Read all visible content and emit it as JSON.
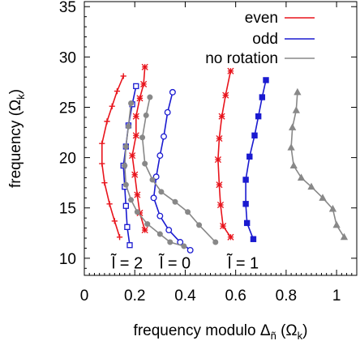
{
  "chart_data": {
    "type": "line",
    "title": "",
    "xlabel": {
      "main": "frequency modulo Δ",
      "sub": "ñ",
      "unit": " (Ω",
      "unit_sub": "k",
      "close": ")"
    },
    "ylabel": {
      "main": "frequency (Ω",
      "sub": "k",
      "close": ")"
    },
    "xlim": [
      0,
      1.08
    ],
    "ylim": [
      8.3,
      35.5
    ],
    "xticks": [
      0,
      0.2,
      0.4,
      0.6,
      0.8,
      1
    ],
    "xtick_labels": [
      "0",
      "0.2",
      "0.4",
      "0.6",
      "0.8",
      "1"
    ],
    "yticks": [
      10,
      15,
      20,
      25,
      30,
      35
    ],
    "ytick_labels": [
      "10",
      "15",
      "20",
      "25",
      "30",
      "35"
    ],
    "legend": {
      "position": "top-right",
      "entries": [
        {
          "name": "even",
          "color": "#e8141c"
        },
        {
          "name": "odd",
          "color": "#1a1ad0"
        },
        {
          "name": "no rotation",
          "color": "#888888"
        }
      ]
    },
    "annotations": [
      {
        "text": "l̃ = 2",
        "x": 0.17,
        "y": 9.0
      },
      {
        "text": "l̃ = 0",
        "x": 0.36,
        "y": 9.0
      },
      {
        "text": "l̃ = 1",
        "x": 0.63,
        "y": 9.0
      }
    ],
    "series": [
      {
        "group": "even",
        "color": "#e8141c",
        "marker": "plus",
        "points": [
          [
            0.155,
            28.1
          ],
          [
            0.13,
            26.6
          ],
          [
            0.11,
            25.1
          ],
          [
            0.09,
            23.6
          ],
          [
            0.07,
            21.4
          ],
          [
            0.07,
            19.4
          ],
          [
            0.08,
            17.5
          ],
          [
            0.1,
            15.4
          ],
          [
            0.12,
            13.7
          ],
          [
            0.14,
            12.1
          ]
        ]
      },
      {
        "group": "even",
        "color": "#e8141c",
        "marker": "star",
        "points": [
          [
            0.24,
            29.0
          ],
          [
            0.235,
            27.3
          ],
          [
            0.22,
            25.9
          ],
          [
            0.205,
            24.1
          ],
          [
            0.205,
            22.2
          ],
          [
            0.19,
            20.2
          ],
          [
            0.2,
            18.3
          ],
          [
            0.21,
            16.3
          ],
          [
            0.22,
            14.5
          ],
          [
            0.24,
            12.8
          ]
        ]
      },
      {
        "group": "even",
        "color": "#e8141c",
        "marker": "star",
        "points": [
          [
            0.58,
            28.6
          ],
          [
            0.56,
            26.2
          ],
          [
            0.545,
            24.1
          ],
          [
            0.535,
            21.9
          ],
          [
            0.53,
            19.8
          ],
          [
            0.535,
            17.3
          ],
          [
            0.54,
            15.3
          ],
          [
            0.55,
            13.2
          ],
          [
            0.58,
            12.1
          ]
        ]
      },
      {
        "group": "odd",
        "color": "#1a1ad0",
        "marker": "square",
        "points": [
          [
            0.205,
            27.1
          ],
          [
            0.19,
            25.3
          ],
          [
            0.175,
            23.2
          ],
          [
            0.165,
            21.1
          ],
          [
            0.155,
            19.2
          ],
          [
            0.16,
            17.1
          ],
          [
            0.165,
            15.2
          ],
          [
            0.17,
            13.1
          ],
          [
            0.18,
            11.3
          ]
        ]
      },
      {
        "group": "odd",
        "color": "#1a1ad0",
        "marker": "circle",
        "points": [
          [
            0.35,
            26.5
          ],
          [
            0.33,
            24.5
          ],
          [
            0.315,
            22.1
          ],
          [
            0.3,
            20.2
          ],
          [
            0.285,
            18.1
          ],
          [
            0.275,
            16.0
          ],
          [
            0.3,
            14.2
          ],
          [
            0.335,
            12.8
          ],
          [
            0.38,
            11.6
          ],
          [
            0.42,
            10.8
          ]
        ]
      },
      {
        "group": "odd",
        "color": "#1a1ad0",
        "marker": "filled-square",
        "points": [
          [
            0.72,
            27.7
          ],
          [
            0.705,
            26.0
          ],
          [
            0.69,
            24.1
          ],
          [
            0.675,
            22.2
          ],
          [
            0.655,
            20.1
          ],
          [
            0.64,
            17.8
          ],
          [
            0.64,
            15.4
          ],
          [
            0.645,
            13.5
          ],
          [
            0.67,
            11.9
          ]
        ]
      },
      {
        "group": "no rotation",
        "color": "#888888",
        "marker": "filled-circle",
        "points": [
          [
            0.185,
            25.4
          ],
          [
            0.175,
            23.1
          ],
          [
            0.165,
            21.1
          ],
          [
            0.16,
            19.2
          ],
          [
            0.165,
            17.3
          ],
          [
            0.185,
            15.8
          ],
          [
            0.21,
            14.6
          ],
          [
            0.25,
            13.4
          ],
          [
            0.3,
            12.4
          ],
          [
            0.34,
            11.6
          ],
          [
            0.395,
            11.2
          ]
        ]
      },
      {
        "group": "no rotation",
        "color": "#888888",
        "marker": "filled-circle",
        "points": [
          [
            0.26,
            26.0
          ],
          [
            0.245,
            24.2
          ],
          [
            0.23,
            22.0
          ],
          [
            0.24,
            19.4
          ],
          [
            0.27,
            17.8
          ],
          [
            0.305,
            16.6
          ],
          [
            0.36,
            15.6
          ],
          [
            0.41,
            14.6
          ],
          [
            0.455,
            13.3
          ],
          [
            0.52,
            11.6
          ]
        ]
      },
      {
        "group": "no rotation",
        "color": "#888888",
        "marker": "filled-triangle",
        "points": [
          [
            0.845,
            26.5
          ],
          [
            0.84,
            24.7
          ],
          [
            0.825,
            23.0
          ],
          [
            0.82,
            21.0
          ],
          [
            0.83,
            19.2
          ],
          [
            0.86,
            18.0
          ],
          [
            0.9,
            17.1
          ],
          [
            0.945,
            16.0
          ],
          [
            0.985,
            14.9
          ],
          [
            1.0,
            13.3
          ],
          [
            1.03,
            12.1
          ]
        ]
      }
    ]
  }
}
